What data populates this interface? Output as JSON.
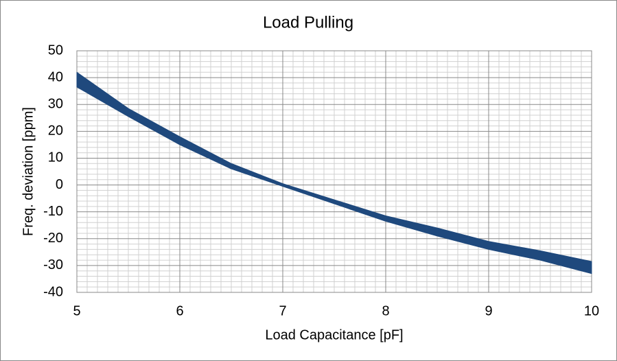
{
  "chart_data": {
    "type": "band",
    "title": "Load Pulling",
    "x_label": "Load Capacitance [pF]",
    "y_label": "Freq. deviation [ppm]",
    "x": [
      5,
      5.5,
      6,
      6.5,
      7,
      7.5,
      8,
      8.5,
      9,
      9.5,
      10
    ],
    "series": [
      {
        "color": "#1f497d",
        "values": [
          42,
          28.5,
          18,
          8,
          0.5,
          -5.5,
          -11.5,
          -16,
          -21,
          -24.5,
          -28.5
        ]
      },
      {
        "color": "#1f497d",
        "values": [
          36.5,
          25.5,
          15,
          6,
          -0.5,
          -7,
          -13.5,
          -19,
          -24,
          -28,
          -33
        ]
      }
    ],
    "xlim": [
      5,
      10
    ],
    "xticks": [
      5,
      6,
      7,
      8,
      9,
      10
    ],
    "ylim": [
      -40,
      50
    ],
    "yticks": [
      -40,
      -30,
      -20,
      -10,
      0,
      10,
      20,
      30,
      40,
      50
    ],
    "grid": true,
    "minor_grid": true
  }
}
